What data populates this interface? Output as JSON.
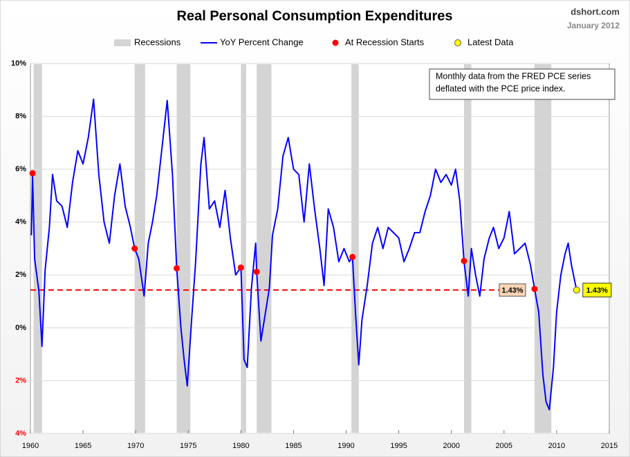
{
  "chart_data": {
    "type": "line",
    "title": "Real Personal Consumption Expenditures",
    "source": "dshort.com",
    "date": "January 2012",
    "annotation": [
      "Monthly data from  the FRED PCE series",
      "deflated with the PCE price index."
    ],
    "xlim": [
      1960,
      2015
    ],
    "xticks": [
      1960,
      1965,
      1970,
      1975,
      1980,
      1985,
      1990,
      1995,
      2000,
      2005,
      2010,
      2015
    ],
    "ylim": [
      -4,
      10
    ],
    "yticks": [
      {
        "value": 10,
        "label": "10%"
      },
      {
        "value": 8,
        "label": "8%"
      },
      {
        "value": 6,
        "label": "6%"
      },
      {
        "value": 4,
        "label": "4%"
      },
      {
        "value": 2,
        "label": "2%"
      },
      {
        "value": 0,
        "label": "0%"
      },
      {
        "value": -2,
        "label": "2%"
      },
      {
        "value": -4,
        "label": "4%"
      }
    ],
    "negative_tick_color": "#ff0000",
    "grid": true,
    "recessions": {
      "name": "Recessions",
      "color": "#d4d4d4",
      "ranges": [
        [
          1960.3,
          1961.1
        ],
        [
          1969.9,
          1970.9
        ],
        [
          1973.9,
          1975.2
        ],
        [
          1980.0,
          1980.5
        ],
        [
          1981.5,
          1982.9
        ],
        [
          1990.5,
          1991.2
        ],
        [
          2001.2,
          2001.9
        ],
        [
          2007.9,
          2009.5
        ]
      ]
    },
    "reference_line": {
      "value": 1.43,
      "label": "1.43%",
      "color": "#ff0000",
      "label_color": "#fcd5b4"
    },
    "series": [
      {
        "name": "YoY Percent Change",
        "color": "#0000ff",
        "style": "line",
        "x": [
          1960.1,
          1960.2,
          1960.4,
          1960.8,
          1961.1,
          1961.4,
          1961.8,
          1962.1,
          1962.5,
          1963.0,
          1963.5,
          1964.0,
          1964.5,
          1965.0,
          1965.5,
          1966.0,
          1966.5,
          1967.0,
          1967.5,
          1968.0,
          1968.5,
          1969.0,
          1969.5,
          1969.9,
          1970.3,
          1970.8,
          1971.2,
          1971.6,
          1972.0,
          1972.5,
          1973.0,
          1973.5,
          1973.9,
          1974.3,
          1974.6,
          1974.9,
          1975.3,
          1975.7,
          1976.2,
          1976.5,
          1977.0,
          1977.5,
          1978.0,
          1978.5,
          1979.0,
          1979.5,
          1980.0,
          1980.3,
          1980.6,
          1981.0,
          1981.4,
          1981.5,
          1981.9,
          1982.3,
          1982.7,
          1983.0,
          1983.5,
          1984.0,
          1984.5,
          1985.0,
          1985.5,
          1986.0,
          1986.5,
          1987.0,
          1987.5,
          1987.9,
          1988.3,
          1988.8,
          1989.3,
          1989.8,
          1990.3,
          1990.6,
          1990.9,
          1991.2,
          1991.5,
          1992.0,
          1992.5,
          1993.0,
          1993.5,
          1994.0,
          1994.5,
          1995.0,
          1995.5,
          1996.0,
          1996.5,
          1997.0,
          1997.5,
          1998.0,
          1998.5,
          1999.0,
          1999.5,
          2000.0,
          2000.4,
          2000.8,
          2001.2,
          2001.6,
          2001.9,
          2002.3,
          2002.7,
          2003.1,
          2003.6,
          2004.0,
          2004.5,
          2005.0,
          2005.5,
          2006.0,
          2006.5,
          2007.0,
          2007.5,
          2007.9,
          2008.3,
          2008.7,
          2009.0,
          2009.3,
          2009.7,
          2010.0,
          2010.4,
          2010.8,
          2011.1,
          2011.4,
          2011.7,
          2011.9
        ],
        "values": [
          3.5,
          5.85,
          2.6,
          1.4,
          -0.7,
          2.2,
          3.8,
          5.8,
          4.8,
          4.6,
          3.8,
          5.5,
          6.7,
          6.2,
          7.2,
          8.65,
          5.8,
          4.0,
          3.2,
          5.0,
          6.2,
          4.6,
          3.8,
          3.0,
          2.6,
          1.2,
          3.2,
          4.0,
          5.0,
          6.8,
          8.6,
          5.8,
          2.25,
          0.0,
          -1.2,
          -2.2,
          0.2,
          2.5,
          6.2,
          7.2,
          4.5,
          4.8,
          3.8,
          5.2,
          3.4,
          2.0,
          2.3,
          -1.2,
          -1.5,
          1.5,
          3.2,
          2.1,
          -0.5,
          0.5,
          1.5,
          3.5,
          4.5,
          6.5,
          7.2,
          6.0,
          5.8,
          4.0,
          6.2,
          4.5,
          3.0,
          1.6,
          4.5,
          3.8,
          2.5,
          3.0,
          2.5,
          2.68,
          0.5,
          -1.4,
          0.3,
          1.6,
          3.2,
          3.8,
          3.0,
          3.8,
          3.6,
          3.4,
          2.5,
          3.0,
          3.6,
          3.6,
          4.4,
          5.0,
          6.0,
          5.5,
          5.8,
          5.4,
          6.0,
          4.8,
          2.5,
          1.2,
          3.0,
          2.0,
          1.2,
          2.6,
          3.4,
          3.8,
          3.0,
          3.4,
          4.4,
          2.8,
          3.0,
          3.2,
          2.4,
          1.47,
          0.6,
          -1.8,
          -2.8,
          -3.1,
          -1.5,
          0.6,
          2.0,
          2.8,
          3.2,
          2.4,
          1.8,
          1.43
        ]
      },
      {
        "name": "At Recession Starts",
        "color": "#ff0000",
        "style": "points",
        "x": [
          1960.2,
          1969.9,
          1973.9,
          1980.0,
          1981.5,
          1990.6,
          2001.2,
          2007.9
        ],
        "values": [
          5.85,
          3.0,
          2.25,
          2.28,
          2.12,
          2.68,
          2.53,
          1.47
        ]
      },
      {
        "name": "Latest Data",
        "color": "#ffff00",
        "style": "points",
        "x": [
          2011.9
        ],
        "values": [
          1.43
        ],
        "value_labels": [
          "1.43%"
        ]
      }
    ]
  }
}
